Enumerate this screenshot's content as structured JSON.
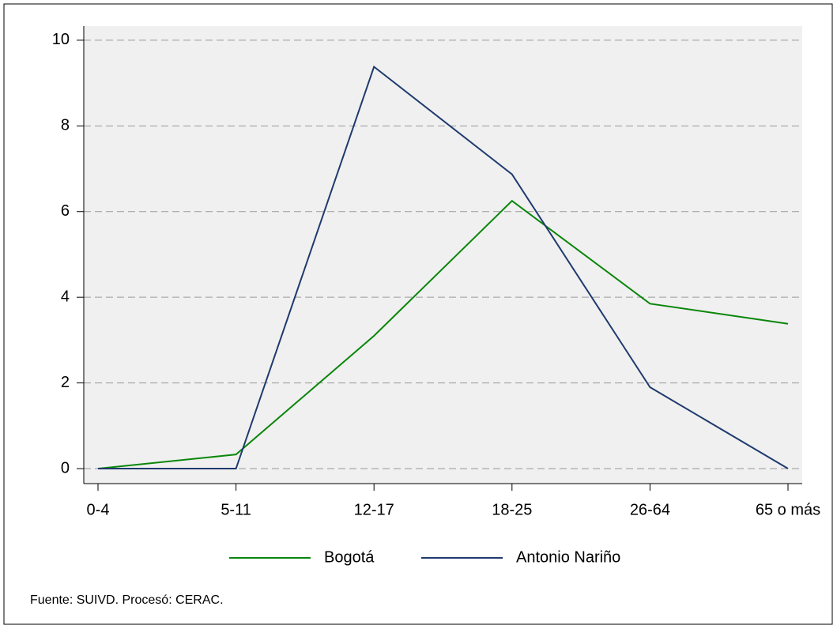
{
  "chart_data": {
    "type": "line",
    "categories": [
      "0-4",
      "5-11",
      "12-17",
      "18-25",
      "26-64",
      "65 o más"
    ],
    "series": [
      {
        "name": "Bogotá",
        "color": "#0a860a",
        "values": [
          0,
          0.33,
          3.1,
          6.25,
          3.85,
          3.38
        ]
      },
      {
        "name": "Antonio Nariño",
        "color": "#1f3a6e",
        "values": [
          0,
          0,
          9.38,
          6.87,
          1.9,
          0
        ]
      }
    ],
    "ylim": [
      -0.35,
      10.33
    ],
    "yticks": [
      0,
      2,
      4,
      6,
      8,
      10
    ],
    "grid": true,
    "legend": "bottom",
    "note": "Fuente: SUIVD. Procesó: CERAC."
  }
}
